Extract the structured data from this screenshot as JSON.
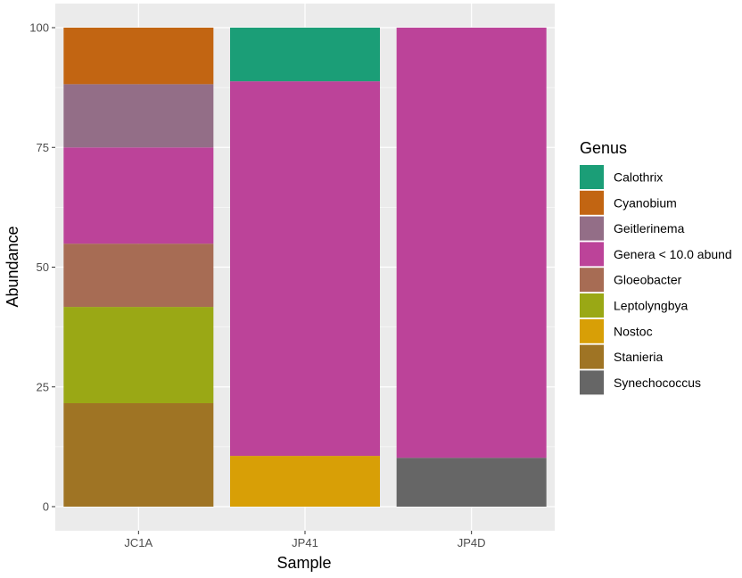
{
  "chart_data": {
    "type": "bar",
    "stacked": true,
    "xlabel": "Sample",
    "ylabel": "Abundance",
    "categories": [
      "JC1A",
      "JP41",
      "JP4D"
    ],
    "ylim": [
      0,
      100
    ],
    "yticks": [
      0,
      25,
      50,
      75,
      100
    ],
    "ytick_labels": [
      "0",
      "25",
      "50",
      "75",
      "100"
    ],
    "grid": true,
    "legend": {
      "title": "Genus",
      "position": "right",
      "entries": [
        "Calothrix",
        "Cyanobium",
        "Geitlerinema",
        "Genera < 10.0 abund",
        "Gloeobacter",
        "Leptolyngbya",
        "Nostoc",
        "Stanieria",
        "Synechococcus"
      ]
    },
    "colors": {
      "Calothrix": "#1b9e77",
      "Cyanobium": "#c26512",
      "Geitlerinema": "#936e87",
      "Genera < 10.0 abund": "#bc4399",
      "Gloeobacter": "#a76c54",
      "Leptolyngbya": "#9aa815",
      "Nostoc": "#d89f06",
      "Stanieria": "#9f7424",
      "Synechococcus": "#666666"
    },
    "stacks": [
      {
        "sample": "JC1A",
        "segments": [
          {
            "genus": "Stanieria",
            "value": 21.6
          },
          {
            "genus": "Leptolyngbya",
            "value": 20.1
          },
          {
            "genus": "Gloeobacter",
            "value": 13.2
          },
          {
            "genus": "Genera < 10.0 abund",
            "value": 20.1
          },
          {
            "genus": "Geitlerinema",
            "value": 13.2
          },
          {
            "genus": "Cyanobium",
            "value": 11.8
          }
        ]
      },
      {
        "sample": "JP41",
        "segments": [
          {
            "genus": "Nostoc",
            "value": 10.6
          },
          {
            "genus": "Genera < 10.0 abund",
            "value": 78.2
          },
          {
            "genus": "Calothrix",
            "value": 11.2
          }
        ]
      },
      {
        "sample": "JP4D",
        "segments": [
          {
            "genus": "Synechococcus",
            "value": 10.2
          },
          {
            "genus": "Genera < 10.0 abund",
            "value": 89.8
          }
        ]
      }
    ]
  }
}
